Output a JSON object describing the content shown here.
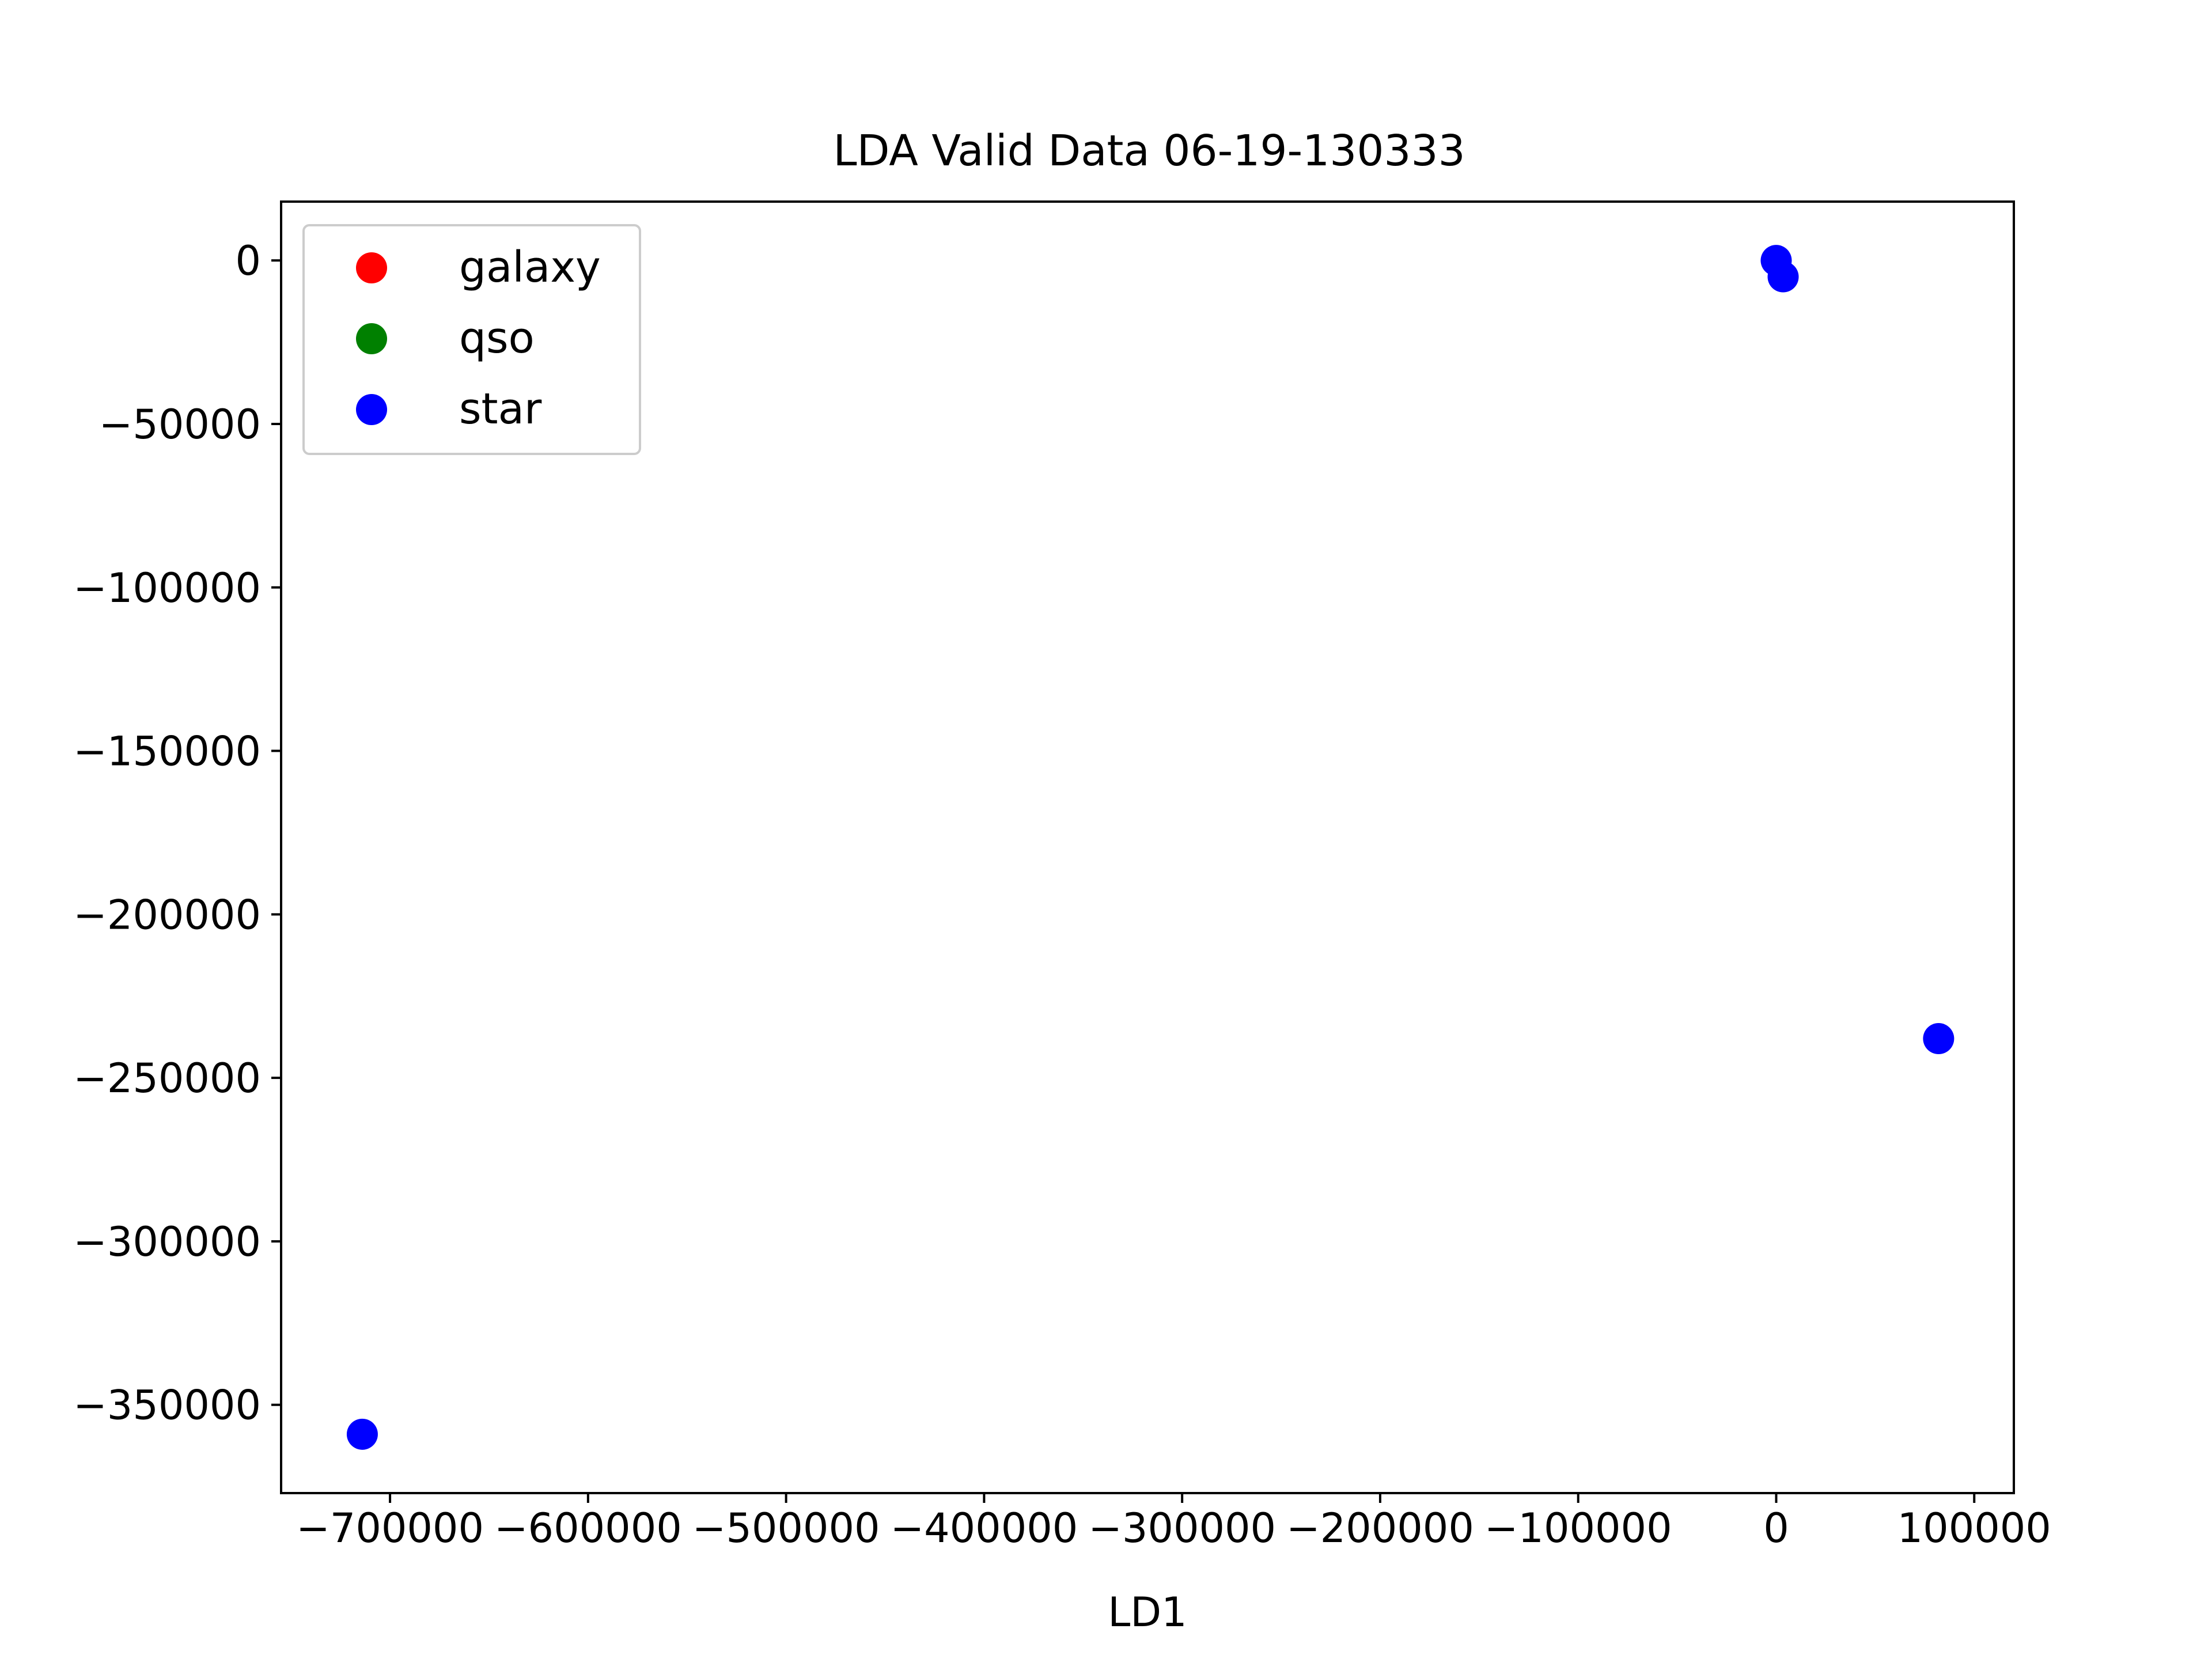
{
  "chart_data": {
    "type": "scatter",
    "title": "LDA Valid Data 06-19-130333",
    "xlabel": "LD1",
    "ylabel": "",
    "xlim": [
      -755000,
      120000
    ],
    "ylim": [
      -377000,
      18000
    ],
    "grid": false,
    "legend_position": "top-left",
    "x_ticks": [
      {
        "value": -700000,
        "label": "−700000"
      },
      {
        "value": -600000,
        "label": "−600000"
      },
      {
        "value": -500000,
        "label": "−500000"
      },
      {
        "value": -400000,
        "label": "−400000"
      },
      {
        "value": -300000,
        "label": "−300000"
      },
      {
        "value": -200000,
        "label": "−200000"
      },
      {
        "value": -100000,
        "label": "−100000"
      },
      {
        "value": 0,
        "label": "0"
      },
      {
        "value": 100000,
        "label": "100000"
      }
    ],
    "y_ticks": [
      {
        "value": 0,
        "label": "0"
      },
      {
        "value": -50000,
        "label": "−50000"
      },
      {
        "value": -100000,
        "label": "−100000"
      },
      {
        "value": -150000,
        "label": "−150000"
      },
      {
        "value": -200000,
        "label": "−200000"
      },
      {
        "value": -250000,
        "label": "−250000"
      },
      {
        "value": -300000,
        "label": "−300000"
      },
      {
        "value": -350000,
        "label": "−350000"
      }
    ],
    "series": [
      {
        "name": "galaxy",
        "color": "#ff0000",
        "points": []
      },
      {
        "name": "qso",
        "color": "#008000",
        "points": []
      },
      {
        "name": "star",
        "color": "#0000ff",
        "points": [
          {
            "x": 0,
            "y": 0
          },
          {
            "x": 3500,
            "y": -5000
          },
          {
            "x": 82000,
            "y": -238000
          },
          {
            "x": -714000,
            "y": -359000
          }
        ]
      }
    ]
  }
}
